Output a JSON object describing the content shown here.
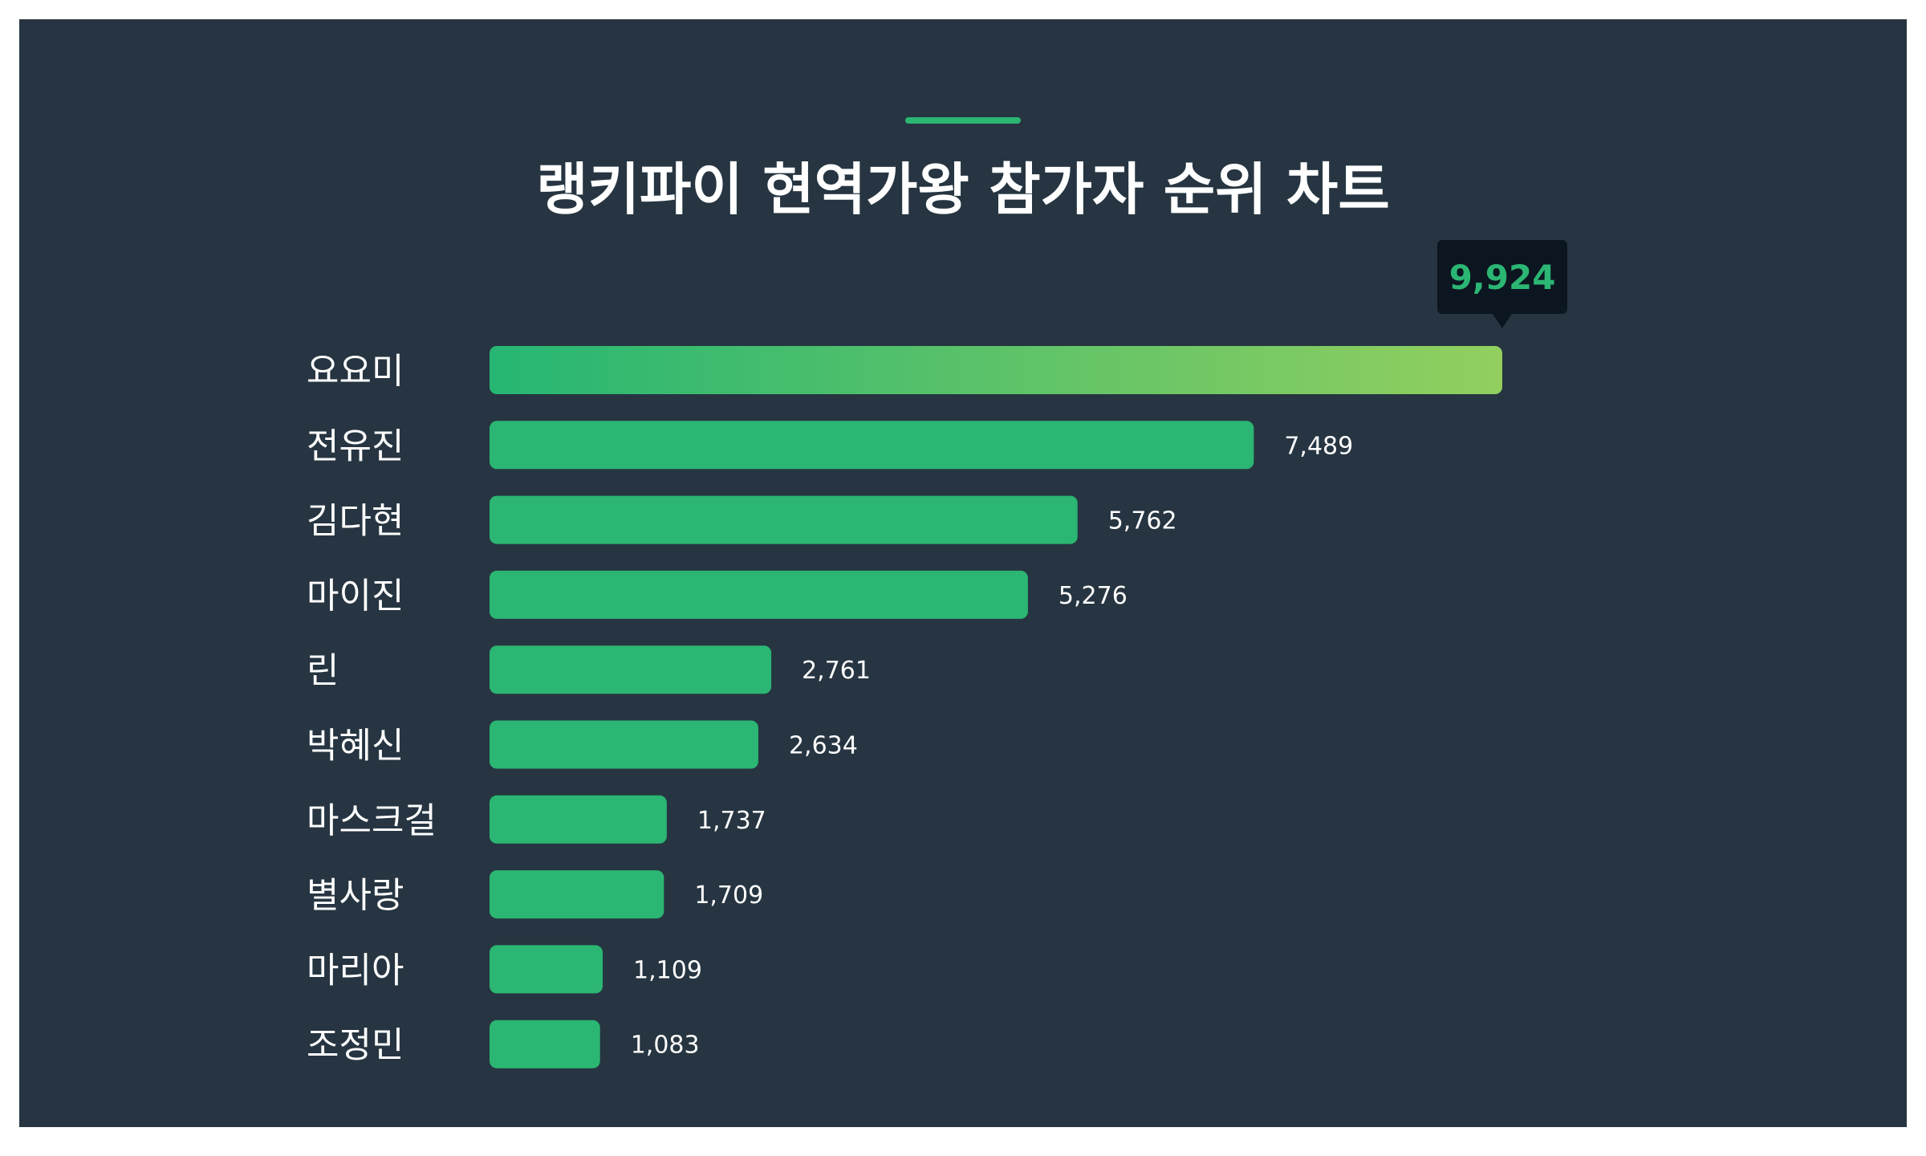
{
  "title": "랭키파이 현역가왕 참가자 순위 차트",
  "colors": {
    "background": "#263541",
    "bar": "#2bb673",
    "top_bar_gradient_start": "#26b673",
    "top_bar_gradient_end": "#92cf5f",
    "tooltip_bg": "#0c1620",
    "tooltip_text": "#2bb673",
    "accent": "#2bb673"
  },
  "chart_data": {
    "type": "bar",
    "orientation": "horizontal",
    "categories": [
      "요요미",
      "전유진",
      "김다현",
      "마이진",
      "린",
      "박혜신",
      "마스크걸",
      "별사랑",
      "마리아",
      "조정민"
    ],
    "values": [
      9924,
      7489,
      5762,
      5276,
      2761,
      2634,
      1737,
      1709,
      1109,
      1083
    ],
    "value_labels": [
      "9,924",
      "7,489",
      "5,762",
      "5,276",
      "2,761",
      "2,634",
      "1,737",
      "1,709",
      "1,109",
      "1,083"
    ],
    "highlight_index": 0,
    "xlim": [
      0,
      9924
    ],
    "grid": false,
    "legend": "none"
  }
}
